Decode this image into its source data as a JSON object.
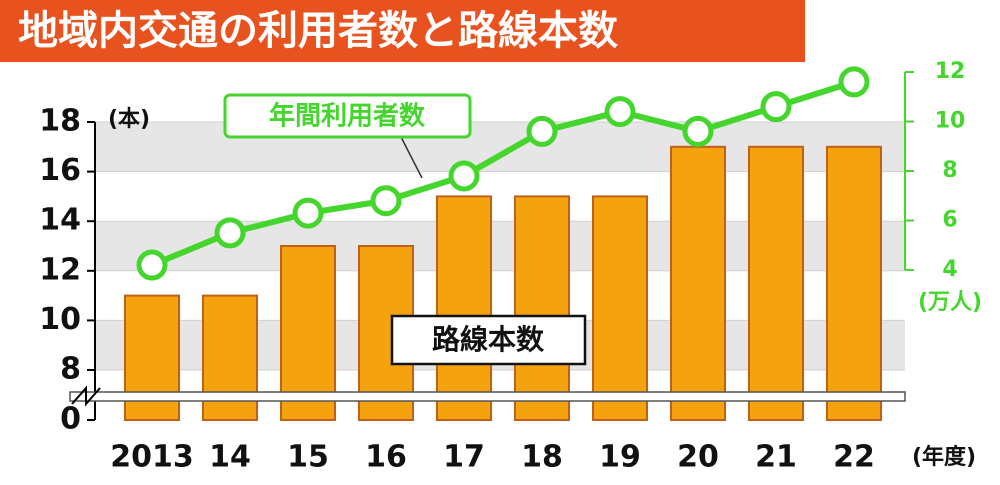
{
  "chart_data": {
    "type": "bar_line",
    "title": "地域内交通の利用者数と路線本数",
    "categories": [
      "2013",
      "14",
      "15",
      "16",
      "17",
      "18",
      "19",
      "20",
      "21",
      "22"
    ],
    "x_unit": "(年度)",
    "y_unit": "(本)",
    "y2_unit": "(万人)",
    "series": [
      {
        "name": "路線本数",
        "type": "bar",
        "color": "#f5a20f",
        "values": [
          11,
          11,
          13,
          13,
          15,
          15,
          15,
          17,
          17,
          17
        ]
      },
      {
        "name": "年間利用者数",
        "type": "line",
        "axis": "y2",
        "color": "#44d62c",
        "values": [
          4.2,
          5.5,
          6.3,
          6.8,
          7.8,
          9.6,
          10.4,
          9.6,
          10.6,
          11.6
        ]
      }
    ],
    "ylim": [
      0,
      18
    ],
    "yticks": [
      0,
      8,
      10,
      12,
      14,
      16,
      18
    ],
    "axis_break": [
      0,
      8
    ],
    "y2lim": [
      4,
      12
    ],
    "y2ticks": [
      4,
      6,
      8,
      10,
      12
    ],
    "grid": true
  }
}
